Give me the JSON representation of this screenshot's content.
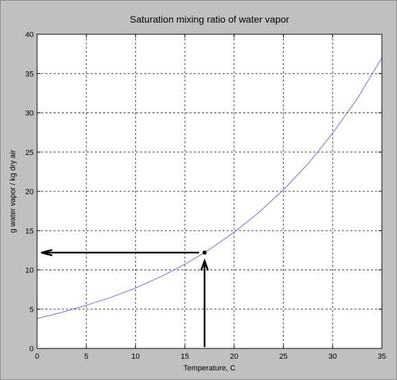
{
  "chart_data": {
    "type": "line",
    "title": "Saturation mixing ratio of water vapor",
    "xlabel": "Temperature, C",
    "ylabel": "g water vapor / kg dry air",
    "xlim": [
      0,
      35
    ],
    "ylim": [
      0,
      40
    ],
    "xticks": [
      0,
      5,
      10,
      15,
      20,
      25,
      30,
      35
    ],
    "yticks": [
      0,
      5,
      10,
      15,
      20,
      25,
      30,
      35,
      40
    ],
    "grid": true,
    "colors": {
      "series": "#6666ff",
      "background": "#c0c0c0",
      "plot": "#ffffff",
      "annotation": "#000000"
    },
    "series": [
      {
        "x": [
          0,
          2.5,
          5,
          7.5,
          10,
          12.5,
          15,
          17.5,
          20,
          22.5,
          25,
          27.5,
          30,
          32.5,
          35
        ],
        "values": [
          3.8,
          4.6,
          5.5,
          6.5,
          7.7,
          9.1,
          10.7,
          12.6,
          14.8,
          17.3,
          20.2,
          23.5,
          27.4,
          31.8,
          37.0
        ]
      }
    ],
    "annotation": {
      "point": {
        "x": 17,
        "y": 12.2
      },
      "arrows": [
        "up-to-point",
        "left-to-y-axis"
      ]
    }
  }
}
